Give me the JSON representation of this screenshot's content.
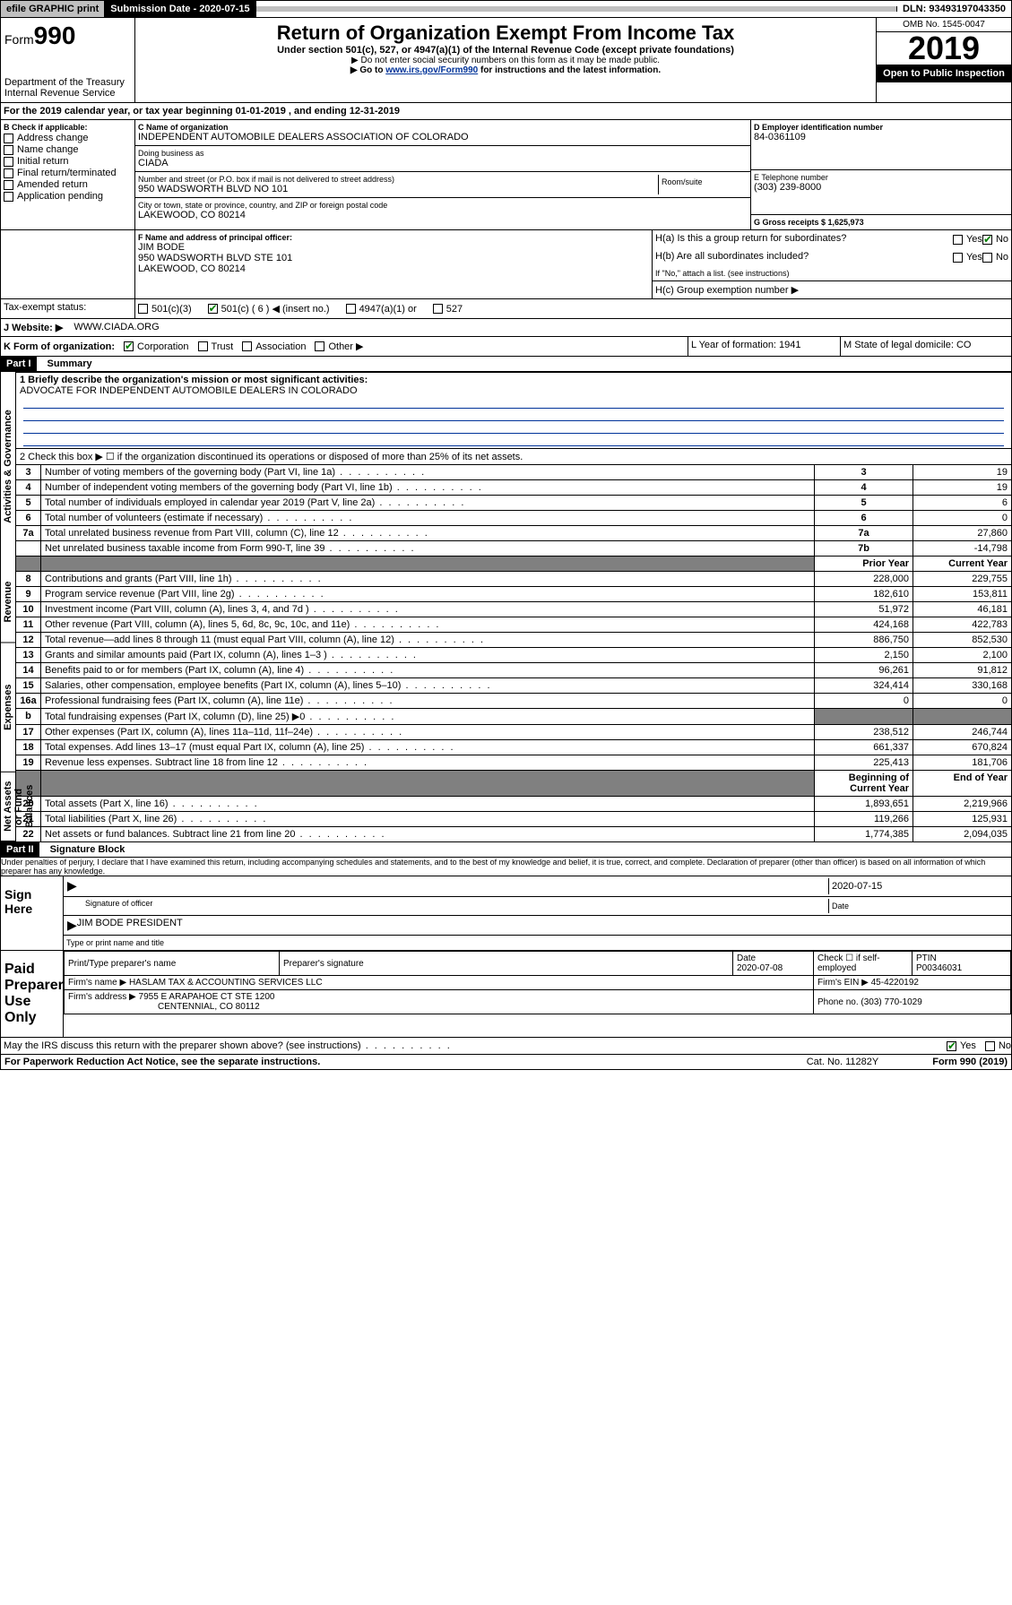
{
  "topbar": {
    "efile": "efile GRAPHIC print",
    "submission_label": "Submission Date - 2020-07-15",
    "dln": "DLN: 93493197043350"
  },
  "header": {
    "form_prefix": "Form",
    "form_number": "990",
    "dept": "Department of the Treasury",
    "irs": "Internal Revenue Service",
    "title": "Return of Organization Exempt From Income Tax",
    "subtitle": "Under section 501(c), 527, or 4947(a)(1) of the Internal Revenue Code (except private foundations)",
    "note1": "▶ Do not enter social security numbers on this form as it may be made public.",
    "note2_pre": "▶ Go to ",
    "note2_link": "www.irs.gov/Form990",
    "note2_post": " for instructions and the latest information.",
    "omb": "OMB No. 1545-0047",
    "year": "2019",
    "open": "Open to Public Inspection"
  },
  "sectionA": {
    "period": "For the 2019 calendar year, or tax year beginning 01-01-2019   , and ending 12-31-2019",
    "check_label": "B Check if applicable:",
    "opts": [
      "Address change",
      "Name change",
      "Initial return",
      "Final return/terminated",
      "Amended return",
      "Application pending"
    ],
    "c_label": "C Name of organization",
    "org_name": "INDEPENDENT AUTOMOBILE DEALERS ASSOCIATION OF COLORADO",
    "dba_label": "Doing business as",
    "dba": "CIADA",
    "addr_label": "Number and street (or P.O. box if mail is not delivered to street address)",
    "room_label": "Room/suite",
    "addr": "950 WADSWORTH BLVD NO 101",
    "city_label": "City or town, state or province, country, and ZIP or foreign postal code",
    "city": "LAKEWOOD, CO  80214",
    "d_label": "D Employer identification number",
    "ein": "84-0361109",
    "e_label": "E Telephone number",
    "phone": "(303) 239-8000",
    "g_label": "G Gross receipts $ 1,625,973",
    "f_label": "F  Name and address of principal officer:",
    "officer_name": "JIM BODE",
    "officer_addr1": "950 WADSWORTH BLVD STE 101",
    "officer_addr2": "LAKEWOOD, CO  80214",
    "ha_label": "H(a)  Is this a group return for subordinates?",
    "hb_label": "H(b)  Are all subordinates included?",
    "hb_note": "If \"No,\" attach a list. (see instructions)",
    "hc_label": "H(c)  Group exemption number ▶",
    "yes": "Yes",
    "no": "No",
    "tax_exempt": "Tax-exempt status:",
    "te_501c3": "501(c)(3)",
    "te_501c": "501(c) ( 6 ) ◀ (insert no.)",
    "te_4947": "4947(a)(1) or",
    "te_527": "527",
    "website_label": "J    Website: ▶",
    "website": "WWW.CIADA.ORG",
    "k_label": "K Form of organization:",
    "k_corp": "Corporation",
    "k_trust": "Trust",
    "k_assoc": "Association",
    "k_other": "Other ▶",
    "l_label": "L Year of formation: 1941",
    "m_label": "M State of legal domicile: CO"
  },
  "part1": {
    "header": "Part I",
    "title": "Summary",
    "q1_label": "1  Briefly describe the organization's mission or most significant activities:",
    "q1_text": "ADVOCATE FOR INDEPENDENT AUTOMOBILE DEALERS IN COLORADO",
    "q2": "2   Check this box ▶ ☐  if the organization discontinued its operations or disposed of more than 25% of its net assets.",
    "lines_gov": [
      {
        "n": "3",
        "label": "Number of voting members of the governing body (Part VI, line 1a)",
        "box": "3",
        "val": "19"
      },
      {
        "n": "4",
        "label": "Number of independent voting members of the governing body (Part VI, line 1b)",
        "box": "4",
        "val": "19"
      },
      {
        "n": "5",
        "label": "Total number of individuals employed in calendar year 2019 (Part V, line 2a)",
        "box": "5",
        "val": "6"
      },
      {
        "n": "6",
        "label": "Total number of volunteers (estimate if necessary)",
        "box": "6",
        "val": "0"
      },
      {
        "n": "7a",
        "label": "Total unrelated business revenue from Part VIII, column (C), line 12",
        "box": "7a",
        "val": "27,860"
      },
      {
        "n": "",
        "label": "Net unrelated business taxable income from Form 990-T, line 39",
        "box": "7b",
        "val": "-14,798"
      }
    ],
    "col_headers": {
      "prior": "Prior Year",
      "current": "Current Year"
    },
    "lines_rev": [
      {
        "n": "8",
        "label": "Contributions and grants (Part VIII, line 1h)",
        "p": "228,000",
        "c": "229,755"
      },
      {
        "n": "9",
        "label": "Program service revenue (Part VIII, line 2g)",
        "p": "182,610",
        "c": "153,811"
      },
      {
        "n": "10",
        "label": "Investment income (Part VIII, column (A), lines 3, 4, and 7d )",
        "p": "51,972",
        "c": "46,181"
      },
      {
        "n": "11",
        "label": "Other revenue (Part VIII, column (A), lines 5, 6d, 8c, 9c, 10c, and 11e)",
        "p": "424,168",
        "c": "422,783"
      },
      {
        "n": "12",
        "label": "Total revenue—add lines 8 through 11 (must equal Part VIII, column (A), line 12)",
        "p": "886,750",
        "c": "852,530"
      }
    ],
    "lines_exp": [
      {
        "n": "13",
        "label": "Grants and similar amounts paid (Part IX, column (A), lines 1–3 )",
        "p": "2,150",
        "c": "2,100"
      },
      {
        "n": "14",
        "label": "Benefits paid to or for members (Part IX, column (A), line 4)",
        "p": "96,261",
        "c": "91,812"
      },
      {
        "n": "15",
        "label": "Salaries, other compensation, employee benefits (Part IX, column (A), lines 5–10)",
        "p": "324,414",
        "c": "330,168"
      },
      {
        "n": "16a",
        "label": "Professional fundraising fees (Part IX, column (A), line 11e)",
        "p": "0",
        "c": "0"
      },
      {
        "n": "b",
        "label": "Total fundraising expenses (Part IX, column (D), line 25) ▶0",
        "p": "",
        "c": "",
        "shade": true
      },
      {
        "n": "17",
        "label": "Other expenses (Part IX, column (A), lines 11a–11d, 11f–24e)",
        "p": "238,512",
        "c": "246,744"
      },
      {
        "n": "18",
        "label": "Total expenses. Add lines 13–17 (must equal Part IX, column (A), line 25)",
        "p": "661,337",
        "c": "670,824"
      },
      {
        "n": "19",
        "label": "Revenue less expenses. Subtract line 18 from line 12",
        "p": "225,413",
        "c": "181,706"
      }
    ],
    "col_headers2": {
      "prior": "Beginning of Current Year",
      "current": "End of Year"
    },
    "lines_net": [
      {
        "n": "20",
        "label": "Total assets (Part X, line 16)",
        "p": "1,893,651",
        "c": "2,219,966"
      },
      {
        "n": "21",
        "label": "Total liabilities (Part X, line 26)",
        "p": "119,266",
        "c": "125,931"
      },
      {
        "n": "22",
        "label": "Net assets or fund balances. Subtract line 21 from line 20",
        "p": "1,774,385",
        "c": "2,094,035"
      }
    ],
    "side_labels": {
      "gov": "Activities & Governance",
      "rev": "Revenue",
      "exp": "Expenses",
      "net": "Net Assets or Fund Balances"
    }
  },
  "part2": {
    "header": "Part II",
    "title": "Signature Block",
    "perjury": "Under penalties of perjury, I declare that I have examined this return, including accompanying schedules and statements, and to the best of my knowledge and belief, it is true, correct, and complete. Declaration of preparer (other than officer) is based on all information of which preparer has any knowledge.",
    "sign_here": "Sign Here",
    "sig_officer": "Signature of officer",
    "sig_date": "2020-07-15",
    "date_label": "Date",
    "officer_printed": "JIM BODE PRESIDENT",
    "type_label": "Type or print name and title",
    "paid": "Paid Preparer Use Only",
    "prep_name_label": "Print/Type preparer's name",
    "prep_sig_label": "Preparer's signature",
    "prep_date_label": "Date",
    "prep_date": "2020-07-08",
    "check_self": "Check ☐ if self-employed",
    "ptin_label": "PTIN",
    "ptin": "P00346031",
    "firm_name_label": "Firm's name    ▶",
    "firm_name": "HASLAM TAX & ACCOUNTING SERVICES LLC",
    "firm_ein_label": "Firm's EIN ▶",
    "firm_ein": "45-4220192",
    "firm_addr_label": "Firm's address ▶",
    "firm_addr1": "7955 E ARAPAHOE CT STE 1200",
    "firm_addr2": "CENTENNIAL, CO  80112",
    "firm_phone_label": "Phone no.",
    "firm_phone": "(303) 770-1029",
    "discuss": "May the IRS discuss this return with the preparer shown above? (see instructions)",
    "discuss_yes": "Yes",
    "discuss_no": "No"
  },
  "footer": {
    "paperwork": "For Paperwork Reduction Act Notice, see the separate instructions.",
    "catno": "Cat. No. 11282Y",
    "formref": "Form 990 (2019)"
  }
}
